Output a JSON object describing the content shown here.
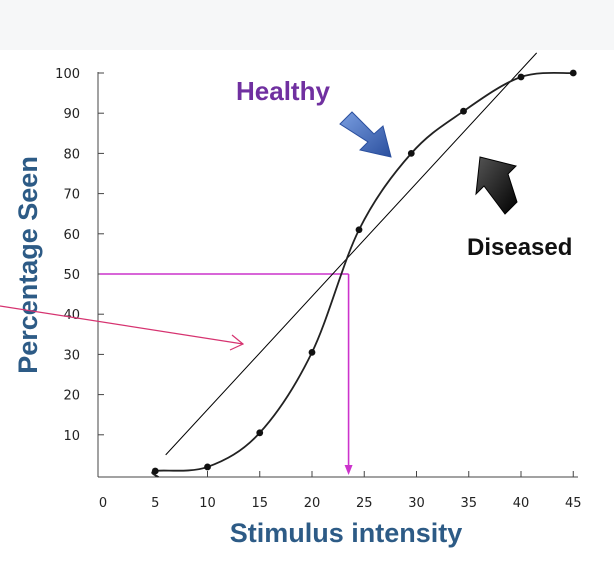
{
  "chart_data": {
    "type": "line",
    "xlabel": "Stimulus intensity",
    "ylabel": "Percentage Seen",
    "xlim": [
      0,
      45
    ],
    "ylim": [
      0,
      100
    ],
    "x_ticks": [
      "0",
      "5",
      "10",
      "15",
      "20",
      "25",
      "30",
      "35",
      "40",
      "45"
    ],
    "y_ticks": [
      "10",
      "20",
      "30",
      "40",
      "50",
      "60",
      "70",
      "80",
      "90",
      "100"
    ],
    "grid": false,
    "series": [
      {
        "kind": "scatter-with-curve",
        "x": [
          5,
          10,
          15,
          20,
          24.5,
          29.5,
          34.5,
          40
        ],
        "y": [
          1,
          2,
          10.5,
          30.5,
          61,
          80,
          90.5,
          99
        ]
      },
      {
        "kind": "straight-line",
        "x": [
          6,
          41.5
        ],
        "y": [
          5,
          105
        ]
      }
    ],
    "threshold": {
      "y": 50,
      "x": 23.5
    },
    "annotations": [
      {
        "text": "Healthy",
        "color": "#7030a0",
        "arrow": "blue"
      },
      {
        "text": "Diseased",
        "color": "#111111",
        "arrow": "black"
      }
    ],
    "colors": {
      "axis_title": "#2d5b86",
      "threshold_lines": "#cc33cc",
      "pointer_arrow": "#d63370",
      "healthy_arrow": "#3c64b4",
      "curve": "#222222"
    }
  }
}
